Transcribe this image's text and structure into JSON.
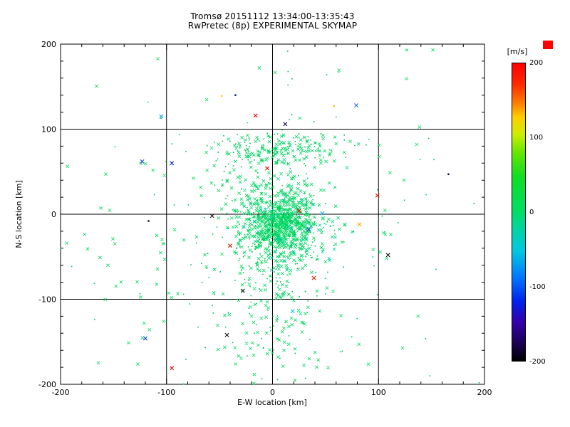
{
  "chart_data": {
    "type": "scatter",
    "title": "Tromsø 20151112 13:34:00-13:35:43",
    "subtitle": "RwPretec (8p) EXPERIMENTAL SKYMAP",
    "xlabel": "E-W location [km]",
    "ylabel": "N-S location [km]",
    "xlim": [
      -200,
      200
    ],
    "ylim": [
      -200,
      200
    ],
    "x_ticks": [
      -200,
      -100,
      0,
      100,
      200
    ],
    "y_ticks": [
      -200,
      -100,
      0,
      100,
      200
    ],
    "grid_lines": [
      -100,
      0,
      100
    ],
    "minor_tick_step": 20,
    "grid": true,
    "marker_note": "velocity [m/s] encoded by rainbow colormap; bulk of echoes near 0 m/s (green)",
    "colorbar": {
      "label": "[m/s]",
      "range": [
        -200,
        200
      ],
      "ticks": [
        200,
        100,
        0,
        -100,
        -200
      ],
      "over_swatch_color": "#ff0000",
      "gradient_stops": [
        {
          "pos": 0.0,
          "color": "#ff0000"
        },
        {
          "pos": 0.07,
          "color": "#ff2a00"
        },
        {
          "pos": 0.13,
          "color": "#ff7700"
        },
        {
          "pos": 0.18,
          "color": "#ffcc00"
        },
        {
          "pos": 0.24,
          "color": "#ccee00"
        },
        {
          "pos": 0.3,
          "color": "#66e600"
        },
        {
          "pos": 0.38,
          "color": "#11dd22"
        },
        {
          "pos": 0.5,
          "color": "#00dd66"
        },
        {
          "pos": 0.56,
          "color": "#00d4a6"
        },
        {
          "pos": 0.63,
          "color": "#00c8e0"
        },
        {
          "pos": 0.72,
          "color": "#0077ff"
        },
        {
          "pos": 0.8,
          "color": "#0022ee"
        },
        {
          "pos": 0.87,
          "color": "#3300aa"
        },
        {
          "pos": 0.94,
          "color": "#1a0055"
        },
        {
          "pos": 1.0,
          "color": "#000000"
        }
      ]
    },
    "clusters": [
      {
        "name": "core",
        "cx": 8,
        "cy": -16,
        "sx": 20,
        "sy": 24,
        "n": 380,
        "v": 10,
        "color": "#00d862",
        "marker": "x"
      },
      {
        "name": "core-inner",
        "cx": 10,
        "cy": -8,
        "sx": 11,
        "sy": 12,
        "n": 200,
        "v": 10,
        "color": "#00d862",
        "marker": "x"
      },
      {
        "name": "core-dots",
        "cx": 5,
        "cy": -20,
        "sx": 24,
        "sy": 26,
        "n": 260,
        "v": 15,
        "color": "#00c455",
        "marker": "dot"
      },
      {
        "name": "upper-band",
        "cx": 8,
        "cy": 76,
        "sx": 34,
        "sy": 10,
        "n": 110,
        "v": 15,
        "color": "#00d862",
        "marker": "x"
      },
      {
        "name": "upper-band-dots",
        "cx": 5,
        "cy": 78,
        "sx": 38,
        "sy": 12,
        "n": 90,
        "v": 15,
        "color": "#00c455",
        "marker": "dot"
      },
      {
        "name": "mid",
        "cx": 0,
        "cy": 30,
        "sx": 30,
        "sy": 18,
        "n": 90,
        "v": 10,
        "color": "#00d862",
        "marker": "x"
      },
      {
        "name": "lower-tail",
        "cx": -3,
        "cy": -105,
        "sx": 24,
        "sy": 46,
        "n": 110,
        "v": 10,
        "color": "#00d862",
        "marker": "x"
      },
      {
        "name": "lower-tail-dots",
        "cx": 0,
        "cy": -100,
        "sx": 28,
        "sy": 48,
        "n": 70,
        "v": 15,
        "color": "#00c455",
        "marker": "dot"
      },
      {
        "name": "background",
        "cx": 0,
        "cy": -5,
        "sx": 95,
        "sy": 95,
        "n": 85,
        "v": 10,
        "color": "#00d862",
        "marker": "x"
      },
      {
        "name": "background-dots",
        "cx": -10,
        "cy": 0,
        "sx": 100,
        "sy": 100,
        "n": 110,
        "v": 15,
        "color": "#00c455",
        "marker": "dot"
      },
      {
        "name": "left-sparse",
        "cx": -140,
        "cy": -60,
        "sx": 35,
        "sy": 75,
        "n": 28,
        "v": 10,
        "color": "#00d862",
        "marker": "x"
      },
      {
        "name": "teal-accents",
        "cx": 15,
        "cy": -25,
        "sx": 30,
        "sy": 30,
        "n": 45,
        "v": -20,
        "color": "#00cfa0",
        "marker": "x"
      }
    ],
    "outliers": [
      {
        "x": 79,
        "y": 128,
        "v": -90,
        "color": "#2e6bff",
        "marker": "x"
      },
      {
        "x": -16,
        "y": 116,
        "v": 190,
        "color": "#e00000",
        "marker": "x"
      },
      {
        "x": -105,
        "y": 115,
        "v": -60,
        "color": "#00aaee",
        "marker": "x"
      },
      {
        "x": 99,
        "y": 22,
        "v": 195,
        "color": "#ee1100",
        "marker": "x"
      },
      {
        "x": 109,
        "y": -48,
        "v": -195,
        "color": "#101010",
        "marker": "x"
      },
      {
        "x": 34,
        "y": -18,
        "v": -110,
        "color": "#2244dd",
        "marker": "x"
      },
      {
        "x": 82,
        "y": -12,
        "v": 150,
        "color": "#ffaa00",
        "marker": "x"
      },
      {
        "x": 19,
        "y": -114,
        "v": -55,
        "color": "#00c8e8",
        "marker": "x"
      },
      {
        "x": 39,
        "y": -75,
        "v": 185,
        "color": "#d42000",
        "marker": "x"
      },
      {
        "x": 166,
        "y": 47,
        "v": -200,
        "color": "#00103a",
        "marker": "dot"
      },
      {
        "x": -35,
        "y": 140,
        "v": -160,
        "color": "#001a80",
        "marker": "dot"
      },
      {
        "x": -48,
        "y": 139,
        "v": 120,
        "color": "#ffd000",
        "marker": "dot"
      },
      {
        "x": -95,
        "y": 60,
        "v": -150,
        "color": "#0030b0",
        "marker": "x"
      },
      {
        "x": -123,
        "y": 62,
        "v": -130,
        "color": "#2050d0",
        "marker": "x"
      },
      {
        "x": 25,
        "y": 4,
        "v": 190,
        "color": "#e81800",
        "marker": "x"
      },
      {
        "x": 47,
        "y": 1,
        "v": -60,
        "color": "#00b8e8",
        "marker": "x"
      },
      {
        "x": -40,
        "y": -37,
        "v": 185,
        "color": "#d81800",
        "marker": "x"
      },
      {
        "x": -28,
        "y": -90,
        "v": -190,
        "color": "#181818",
        "marker": "x"
      },
      {
        "x": -43,
        "y": -142,
        "v": -195,
        "color": "#101010",
        "marker": "x"
      },
      {
        "x": -95,
        "y": -181,
        "v": 185,
        "color": "#cc1400",
        "marker": "x"
      },
      {
        "x": -120,
        "y": -146,
        "v": -120,
        "color": "#1040cc",
        "marker": "x"
      },
      {
        "x": 58,
        "y": 127,
        "v": 110,
        "color": "#d8c800",
        "marker": "dot"
      },
      {
        "x": 12,
        "y": 106,
        "v": -170,
        "color": "#101060",
        "marker": "x"
      },
      {
        "x": -117,
        "y": -8,
        "v": -198,
        "color": "#101010",
        "marker": "dot"
      },
      {
        "x": -57,
        "y": -2,
        "v": -190,
        "color": "#151515",
        "marker": "x"
      },
      {
        "x": -5,
        "y": 54,
        "v": 190,
        "color": "#dd1100",
        "marker": "x"
      }
    ]
  }
}
